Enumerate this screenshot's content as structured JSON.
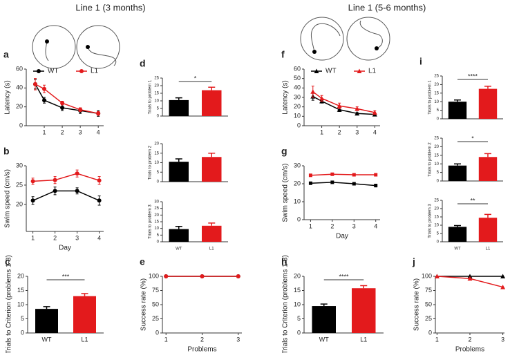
{
  "headers": [
    "Line 1 (3 months)",
    "Line 1 (5-6 months)"
  ],
  "chart_data": [
    {
      "type": "line",
      "panel": "a",
      "ylabel": "Latency (s)",
      "x": [
        0.5,
        1,
        2,
        3,
        4
      ],
      "xlim": [
        0,
        4.3
      ],
      "xticks": [
        1,
        2,
        3,
        4
      ],
      "ylim": [
        0,
        60
      ],
      "yticks": [
        0,
        20,
        40,
        60
      ],
      "legend": true,
      "marker": "circle",
      "series": [
        {
          "name": "WT",
          "color": "#000000",
          "values": [
            44,
            27,
            19,
            16,
            13
          ],
          "errors": [
            5,
            3,
            3,
            3,
            3
          ]
        },
        {
          "name": "L1",
          "color": "#e31a1c",
          "values": [
            44,
            39,
            24,
            17,
            13
          ],
          "errors": [
            6,
            4,
            2,
            2,
            2
          ]
        }
      ]
    },
    {
      "type": "line",
      "panel": "b",
      "ylabel": "Swim speed (cm/s)",
      "xlabel": "Day",
      "x": [
        1,
        2,
        3,
        4
      ],
      "xlim": [
        0.7,
        4.2
      ],
      "xticks": [
        1,
        2,
        3,
        4
      ],
      "ylim": [
        13,
        30
      ],
      "yticks": [
        20,
        25,
        30
      ],
      "marker": "circle",
      "series": [
        {
          "color": "#000000",
          "values": [
            21,
            23.5,
            23.5,
            21
          ],
          "errors": [
            1,
            1,
            0.8,
            1.2
          ]
        },
        {
          "color": "#e31a1c",
          "values": [
            26,
            26.3,
            28,
            26.2
          ],
          "errors": [
            0.8,
            0.9,
            0.9,
            1
          ]
        }
      ]
    },
    {
      "type": "bar",
      "panel": "c",
      "ylabel": "Trials to Criterion (problems 1-3)",
      "categories": [
        "WT",
        "L1"
      ],
      "values": [
        8.5,
        13
      ],
      "errors": [
        0.8,
        0.9
      ],
      "colors": [
        "#000000",
        "#e31a1c"
      ],
      "ylim": [
        0,
        20
      ],
      "yticks": [
        0,
        5,
        10,
        15,
        20
      ],
      "significance": "***"
    },
    {
      "type": "bar",
      "panel": "d",
      "ylabel": "Trials to problem 1",
      "categories": [
        null,
        null
      ],
      "values": [
        10.5,
        17
      ],
      "errors": [
        1.5,
        2
      ],
      "colors": [
        "#000000",
        "#e31a1c"
      ],
      "ylim": [
        0,
        25
      ],
      "yticks": [
        0,
        5,
        10,
        15,
        20,
        25
      ],
      "significance": "*"
    },
    {
      "type": "bar",
      "ylabel": "Trials to problem 2",
      "categories": [
        null,
        null
      ],
      "values": [
        10.5,
        13
      ],
      "errors": [
        1.5,
        2
      ],
      "colors": [
        "#000000",
        "#e31a1c"
      ],
      "ylim": [
        0,
        20
      ],
      "yticks": [
        0,
        5,
        10,
        15,
        20
      ]
    },
    {
      "type": "bar",
      "ylabel": "Trials to problem 3",
      "categories": [
        "WT",
        "L1"
      ],
      "values": [
        9.5,
        12
      ],
      "errors": [
        2,
        2
      ],
      "colors": [
        "#000000",
        "#e31a1c"
      ],
      "ylim": [
        0,
        30
      ],
      "yticks": [
        0,
        5,
        10,
        15,
        20,
        25,
        30
      ]
    },
    {
      "type": "line",
      "panel": "e",
      "ylabel": "Success rate (%)",
      "xlabel": "Problems",
      "x": [
        1,
        2,
        3
      ],
      "xlim": [
        0.9,
        3.1
      ],
      "xticks": [
        1,
        2,
        3
      ],
      "ylim": [
        0,
        100
      ],
      "yticks": [
        0,
        25,
        50,
        75,
        100
      ],
      "marker": "circle",
      "series": [
        {
          "color": "#000000",
          "values": [
            100,
            100,
            100
          ]
        },
        {
          "color": "#e31a1c",
          "values": [
            100,
            100,
            100
          ]
        }
      ]
    },
    {
      "type": "line",
      "panel": "f",
      "ylabel": "Latency (s)",
      "x": [
        0.5,
        1,
        2,
        3,
        4
      ],
      "xlim": [
        0,
        4.3
      ],
      "xticks": [
        1,
        2,
        3,
        4
      ],
      "ylim": [
        0,
        60
      ],
      "yticks": [
        0,
        10,
        20,
        30,
        40,
        50,
        60
      ],
      "legend": true,
      "marker": "triangle",
      "series": [
        {
          "name": "WT",
          "color": "#000000",
          "values": [
            31,
            26,
            17,
            13,
            12
          ],
          "errors": [
            4,
            2,
            2,
            1,
            1
          ]
        },
        {
          "name": "L1",
          "color": "#e31a1c",
          "values": [
            36,
            29,
            21,
            18,
            14
          ],
          "errors": [
            6,
            3,
            3,
            2,
            2
          ]
        }
      ]
    },
    {
      "type": "line",
      "panel": "g",
      "ylabel": "Swim speed (cm/s)",
      "xlabel": "Day",
      "x": [
        1,
        2,
        3,
        4
      ],
      "xlim": [
        0.7,
        4.2
      ],
      "xticks": [
        1,
        2,
        3,
        4
      ],
      "ylim": [
        0,
        30
      ],
      "yticks": [
        0,
        10,
        20,
        30
      ],
      "marker": "square",
      "series": [
        {
          "color": "#000000",
          "values": [
            20.3,
            20.8,
            20,
            19
          ],
          "errors": [
            0.5,
            0.6,
            0.7,
            0.8
          ]
        },
        {
          "color": "#e31a1c",
          "values": [
            24.7,
            25.3,
            25,
            25
          ],
          "errors": [
            0.5,
            0.6,
            0.7,
            0.7
          ]
        }
      ]
    },
    {
      "type": "bar",
      "panel": "h",
      "ylabel": "Trials to Criterion (problems 1-3)",
      "categories": [
        "WT",
        "L1"
      ],
      "values": [
        9.5,
        15.8
      ],
      "errors": [
        0.7,
        0.9
      ],
      "colors": [
        "#000000",
        "#e31a1c"
      ],
      "ylim": [
        0,
        20
      ],
      "yticks": [
        0,
        5,
        10,
        15,
        20
      ],
      "significance": "****"
    },
    {
      "type": "bar",
      "panel": "i",
      "ylabel": "Trials to problem 1",
      "categories": [
        null,
        null
      ],
      "values": [
        10,
        17.5
      ],
      "errors": [
        1,
        1.5
      ],
      "colors": [
        "#000000",
        "#e31a1c"
      ],
      "ylim": [
        0,
        25
      ],
      "yticks": [
        0,
        5,
        10,
        15,
        20,
        25
      ],
      "significance": "****"
    },
    {
      "type": "bar",
      "ylabel": "Trials to problem 2",
      "categories": [
        null,
        null
      ],
      "values": [
        9,
        14
      ],
      "errors": [
        1,
        2
      ],
      "colors": [
        "#000000",
        "#e31a1c"
      ],
      "ylim": [
        0,
        25
      ],
      "yticks": [
        0,
        5,
        10,
        15,
        20,
        25
      ],
      "significance": "*"
    },
    {
      "type": "bar",
      "ylabel": "Trials to problem 3",
      "categories": [
        "WT",
        "L1"
      ],
      "values": [
        9,
        14.5
      ],
      "errors": [
        0.8,
        2
      ],
      "colors": [
        "#000000",
        "#e31a1c"
      ],
      "ylim": [
        0,
        25
      ],
      "yticks": [
        0,
        5,
        10,
        15,
        20,
        25
      ],
      "significance": "**"
    },
    {
      "type": "line",
      "panel": "j",
      "ylabel": "Success rate (%)",
      "xlabel": "Problems",
      "x": [
        1,
        2,
        3
      ],
      "xlim": [
        0.95,
        3.05
      ],
      "xticks": [
        1,
        2,
        3
      ],
      "ylim": [
        0,
        100
      ],
      "yticks": [
        0,
        25,
        50,
        75,
        100
      ],
      "marker": "triangle",
      "series": [
        {
          "color": "#000000",
          "values": [
            100,
            100,
            100
          ]
        },
        {
          "color": "#e31a1c",
          "values": [
            100,
            96,
            81
          ]
        }
      ]
    }
  ]
}
